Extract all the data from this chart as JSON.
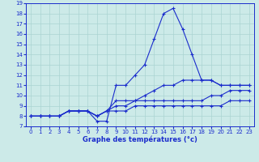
{
  "title": "Graphe des températures (°c)",
  "bg_color": "#cceae8",
  "grid_color": "#aad4d2",
  "line_color": "#1a2ccc",
  "xlim": [
    -0.5,
    23.5
  ],
  "ylim": [
    7,
    19
  ],
  "xticks": [
    0,
    1,
    2,
    3,
    4,
    5,
    6,
    7,
    8,
    9,
    10,
    11,
    12,
    13,
    14,
    15,
    16,
    17,
    18,
    19,
    20,
    21,
    22,
    23
  ],
  "yticks": [
    7,
    8,
    9,
    10,
    11,
    12,
    13,
    14,
    15,
    16,
    17,
    18,
    19
  ],
  "lines": [
    [
      8.0,
      8.0,
      8.0,
      8.0,
      8.5,
      8.5,
      8.5,
      7.5,
      7.5,
      11.0,
      11.0,
      12.0,
      13.0,
      15.5,
      18.0,
      18.5,
      16.5,
      14.0,
      11.5,
      11.5,
      11.0,
      11.0,
      11.0,
      11.0
    ],
    [
      8.0,
      8.0,
      8.0,
      8.0,
      8.5,
      8.5,
      8.5,
      8.0,
      8.5,
      9.5,
      9.5,
      9.5,
      10.0,
      10.5,
      11.0,
      11.0,
      11.5,
      11.5,
      11.5,
      11.5,
      11.0,
      11.0,
      11.0,
      11.0
    ],
    [
      8.0,
      8.0,
      8.0,
      8.0,
      8.5,
      8.5,
      8.5,
      8.0,
      8.5,
      9.0,
      9.0,
      9.5,
      9.5,
      9.5,
      9.5,
      9.5,
      9.5,
      9.5,
      9.5,
      10.0,
      10.0,
      10.5,
      10.5,
      10.5
    ],
    [
      8.0,
      8.0,
      8.0,
      8.0,
      8.5,
      8.5,
      8.5,
      8.0,
      8.5,
      8.5,
      8.5,
      9.0,
      9.0,
      9.0,
      9.0,
      9.0,
      9.0,
      9.0,
      9.0,
      9.0,
      9.0,
      9.5,
      9.5,
      9.5
    ]
  ]
}
